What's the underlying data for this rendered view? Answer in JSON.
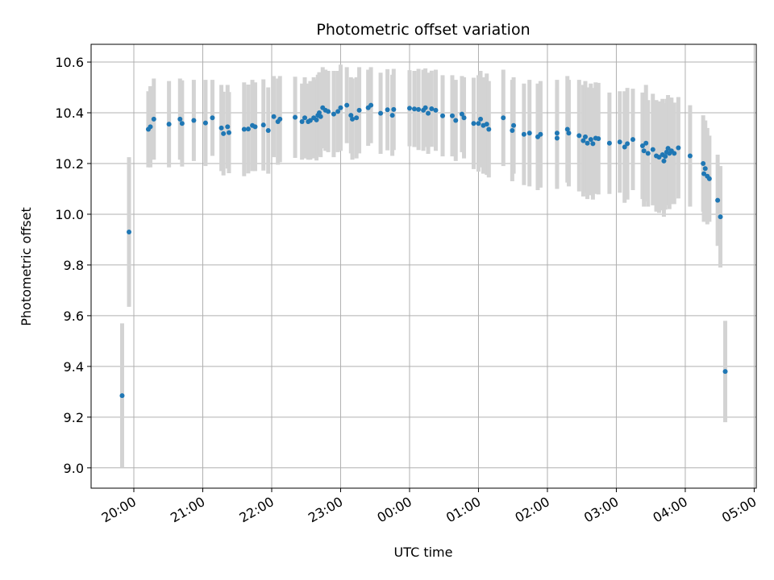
{
  "chart_data": {
    "type": "scatter",
    "title": "Photometric offset variation",
    "xlabel": "UTC time",
    "ylabel": "Photometric offset",
    "grid": true,
    "x_unit": "UTC time (hours; values past midnight exceed 24)",
    "xlim": [
      19.38,
      29.03
    ],
    "ylim": [
      8.92,
      10.67
    ],
    "x_ticks": [
      20,
      21,
      22,
      23,
      24,
      25,
      26,
      27,
      28,
      29
    ],
    "x_tick_labels": [
      "20:00",
      "21:00",
      "22:00",
      "23:00",
      "00:00",
      "01:00",
      "02:00",
      "03:00",
      "04:00",
      "05:00"
    ],
    "y_ticks": [
      9.0,
      9.2,
      9.4,
      9.6,
      9.8,
      10.0,
      10.2,
      10.4,
      10.6
    ],
    "y_tick_labels": [
      "9.0",
      "9.2",
      "9.4",
      "9.6",
      "9.8",
      "10.0",
      "10.2",
      "10.4",
      "10.6"
    ],
    "colors": {
      "points": "#1f77b4",
      "error_bars": "#d3d3d3",
      "grid": "#b0b0b0"
    },
    "points": [
      {
        "x": 19.83,
        "y": 9.285,
        "err": 0.285
      },
      {
        "x": 19.93,
        "y": 9.93,
        "err": 0.295
      },
      {
        "x": 20.21,
        "y": 10.335,
        "err": 0.15
      },
      {
        "x": 20.24,
        "y": 10.345,
        "err": 0.16
      },
      {
        "x": 20.29,
        "y": 10.375,
        "err": 0.16
      },
      {
        "x": 20.51,
        "y": 10.355,
        "err": 0.17
      },
      {
        "x": 20.67,
        "y": 10.375,
        "err": 0.16
      },
      {
        "x": 20.7,
        "y": 10.358,
        "err": 0.17
      },
      {
        "x": 20.87,
        "y": 10.37,
        "err": 0.16
      },
      {
        "x": 21.04,
        "y": 10.36,
        "err": 0.17
      },
      {
        "x": 21.14,
        "y": 10.38,
        "err": 0.15
      },
      {
        "x": 21.27,
        "y": 10.34,
        "err": 0.17
      },
      {
        "x": 21.3,
        "y": 10.318,
        "err": 0.165
      },
      {
        "x": 21.36,
        "y": 10.345,
        "err": 0.165
      },
      {
        "x": 21.38,
        "y": 10.322,
        "err": 0.16
      },
      {
        "x": 21.6,
        "y": 10.335,
        "err": 0.185
      },
      {
        "x": 21.66,
        "y": 10.336,
        "err": 0.175
      },
      {
        "x": 21.72,
        "y": 10.35,
        "err": 0.18
      },
      {
        "x": 21.76,
        "y": 10.345,
        "err": 0.175
      },
      {
        "x": 21.88,
        "y": 10.352,
        "err": 0.18
      },
      {
        "x": 21.95,
        "y": 10.33,
        "err": 0.17
      },
      {
        "x": 22.03,
        "y": 10.385,
        "err": 0.16
      },
      {
        "x": 22.09,
        "y": 10.365,
        "err": 0.17
      },
      {
        "x": 22.12,
        "y": 10.375,
        "err": 0.17
      },
      {
        "x": 22.34,
        "y": 10.382,
        "err": 0.16
      },
      {
        "x": 22.44,
        "y": 10.365,
        "err": 0.15
      },
      {
        "x": 22.48,
        "y": 10.38,
        "err": 0.16
      },
      {
        "x": 22.53,
        "y": 10.365,
        "err": 0.15
      },
      {
        "x": 22.56,
        "y": 10.37,
        "err": 0.155
      },
      {
        "x": 22.61,
        "y": 10.38,
        "err": 0.16
      },
      {
        "x": 22.65,
        "y": 10.372,
        "err": 0.16
      },
      {
        "x": 22.67,
        "y": 10.39,
        "err": 0.16
      },
      {
        "x": 22.69,
        "y": 10.4,
        "err": 0.16
      },
      {
        "x": 22.71,
        "y": 10.385,
        "err": 0.16
      },
      {
        "x": 22.74,
        "y": 10.42,
        "err": 0.16
      },
      {
        "x": 22.78,
        "y": 10.41,
        "err": 0.16
      },
      {
        "x": 22.82,
        "y": 10.405,
        "err": 0.16
      },
      {
        "x": 22.9,
        "y": 10.395,
        "err": 0.17
      },
      {
        "x": 22.96,
        "y": 10.405,
        "err": 0.16
      },
      {
        "x": 23.0,
        "y": 10.42,
        "err": 0.17
      },
      {
        "x": 23.09,
        "y": 10.43,
        "err": 0.15
      },
      {
        "x": 23.15,
        "y": 10.39,
        "err": 0.15
      },
      {
        "x": 23.17,
        "y": 10.375,
        "err": 0.16
      },
      {
        "x": 23.27,
        "y": 10.41,
        "err": 0.17
      },
      {
        "x": 23.23,
        "y": 10.38,
        "err": 0.16
      },
      {
        "x": 23.4,
        "y": 10.42,
        "err": 0.15
      },
      {
        "x": 23.44,
        "y": 10.43,
        "err": 0.15
      },
      {
        "x": 23.58,
        "y": 10.398,
        "err": 0.16
      },
      {
        "x": 23.68,
        "y": 10.412,
        "err": 0.16
      },
      {
        "x": 23.75,
        "y": 10.39,
        "err": 0.16
      },
      {
        "x": 23.77,
        "y": 10.413,
        "err": 0.16
      },
      {
        "x": 24.0,
        "y": 10.418,
        "err": 0.15
      },
      {
        "x": 24.07,
        "y": 10.415,
        "err": 0.15
      },
      {
        "x": 24.13,
        "y": 10.413,
        "err": 0.16
      },
      {
        "x": 24.2,
        "y": 10.41,
        "err": 0.16
      },
      {
        "x": 24.23,
        "y": 10.42,
        "err": 0.155
      },
      {
        "x": 24.27,
        "y": 10.398,
        "err": 0.16
      },
      {
        "x": 24.32,
        "y": 10.416,
        "err": 0.15
      },
      {
        "x": 24.38,
        "y": 10.41,
        "err": 0.16
      },
      {
        "x": 24.48,
        "y": 10.388,
        "err": 0.16
      },
      {
        "x": 24.62,
        "y": 10.388,
        "err": 0.16
      },
      {
        "x": 24.67,
        "y": 10.37,
        "err": 0.16
      },
      {
        "x": 24.76,
        "y": 10.395,
        "err": 0.15
      },
      {
        "x": 24.79,
        "y": 10.38,
        "err": 0.16
      },
      {
        "x": 24.93,
        "y": 10.358,
        "err": 0.18
      },
      {
        "x": 25.0,
        "y": 10.358,
        "err": 0.19
      },
      {
        "x": 25.03,
        "y": 10.375,
        "err": 0.19
      },
      {
        "x": 25.07,
        "y": 10.35,
        "err": 0.19
      },
      {
        "x": 25.12,
        "y": 10.355,
        "err": 0.2
      },
      {
        "x": 25.15,
        "y": 10.335,
        "err": 0.19
      },
      {
        "x": 25.36,
        "y": 10.38,
        "err": 0.19
      },
      {
        "x": 25.49,
        "y": 10.33,
        "err": 0.2
      },
      {
        "x": 25.51,
        "y": 10.35,
        "err": 0.19
      },
      {
        "x": 25.66,
        "y": 10.315,
        "err": 0.2
      },
      {
        "x": 25.74,
        "y": 10.32,
        "err": 0.21
      },
      {
        "x": 25.86,
        "y": 10.305,
        "err": 0.21
      },
      {
        "x": 25.9,
        "y": 10.315,
        "err": 0.21
      },
      {
        "x": 26.14,
        "y": 10.3,
        "err": 0.2
      },
      {
        "x": 26.14,
        "y": 10.32,
        "err": 0.21
      },
      {
        "x": 26.29,
        "y": 10.335,
        "err": 0.21
      },
      {
        "x": 26.31,
        "y": 10.32,
        "err": 0.21
      },
      {
        "x": 26.46,
        "y": 10.31,
        "err": 0.22
      },
      {
        "x": 26.52,
        "y": 10.29,
        "err": 0.22
      },
      {
        "x": 26.55,
        "y": 10.305,
        "err": 0.22
      },
      {
        "x": 26.58,
        "y": 10.28,
        "err": 0.22
      },
      {
        "x": 26.63,
        "y": 10.295,
        "err": 0.22
      },
      {
        "x": 26.66,
        "y": 10.278,
        "err": 0.22
      },
      {
        "x": 26.7,
        "y": 10.3,
        "err": 0.22
      },
      {
        "x": 26.74,
        "y": 10.298,
        "err": 0.22
      },
      {
        "x": 26.9,
        "y": 10.28,
        "err": 0.2
      },
      {
        "x": 27.05,
        "y": 10.285,
        "err": 0.2
      },
      {
        "x": 27.12,
        "y": 10.265,
        "err": 0.22
      },
      {
        "x": 27.16,
        "y": 10.278,
        "err": 0.22
      },
      {
        "x": 27.24,
        "y": 10.295,
        "err": 0.2
      },
      {
        "x": 27.38,
        "y": 10.27,
        "err": 0.21
      },
      {
        "x": 27.4,
        "y": 10.25,
        "err": 0.22
      },
      {
        "x": 27.43,
        "y": 10.28,
        "err": 0.23
      },
      {
        "x": 27.46,
        "y": 10.24,
        "err": 0.21
      },
      {
        "x": 27.53,
        "y": 10.255,
        "err": 0.22
      },
      {
        "x": 27.58,
        "y": 10.23,
        "err": 0.22
      },
      {
        "x": 27.62,
        "y": 10.225,
        "err": 0.22
      },
      {
        "x": 27.67,
        "y": 10.235,
        "err": 0.22
      },
      {
        "x": 27.69,
        "y": 10.21,
        "err": 0.22
      },
      {
        "x": 27.71,
        "y": 10.228,
        "err": 0.21
      },
      {
        "x": 27.73,
        "y": 10.245,
        "err": 0.21
      },
      {
        "x": 27.75,
        "y": 10.26,
        "err": 0.21
      },
      {
        "x": 27.77,
        "y": 10.24,
        "err": 0.22
      },
      {
        "x": 27.8,
        "y": 10.25,
        "err": 0.21
      },
      {
        "x": 27.84,
        "y": 10.24,
        "err": 0.2
      },
      {
        "x": 27.9,
        "y": 10.262,
        "err": 0.2
      },
      {
        "x": 28.07,
        "y": 10.23,
        "err": 0.2
      },
      {
        "x": 28.26,
        "y": 10.2,
        "err": 0.19
      },
      {
        "x": 28.27,
        "y": 10.16,
        "err": 0.19
      },
      {
        "x": 28.29,
        "y": 10.18,
        "err": 0.19
      },
      {
        "x": 28.32,
        "y": 10.15,
        "err": 0.19
      },
      {
        "x": 28.35,
        "y": 10.14,
        "err": 0.17
      },
      {
        "x": 28.47,
        "y": 10.055,
        "err": 0.18
      },
      {
        "x": 28.51,
        "y": 9.99,
        "err": 0.2
      },
      {
        "x": 28.58,
        "y": 9.38,
        "err": 0.2
      }
    ]
  }
}
